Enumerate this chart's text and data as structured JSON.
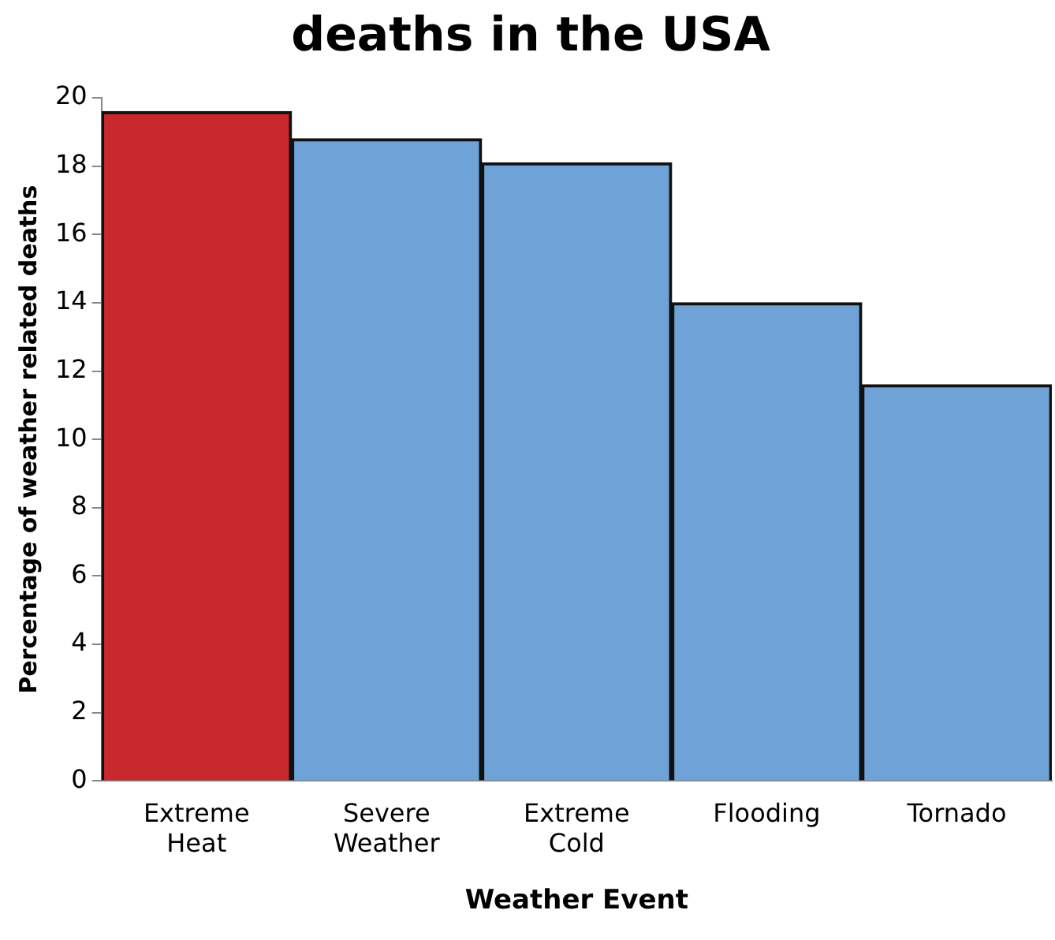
{
  "chart_data": {
    "type": "bar",
    "title": "deaths in the USA",
    "xlabel": "Weather Event",
    "ylabel": "Percentage of weather related deaths",
    "categories": [
      "Extreme Heat",
      "Severe Weather",
      "Extreme Cold",
      "Flooding",
      "Tornado"
    ],
    "values": [
      19.6,
      18.8,
      18.1,
      14.0,
      11.6
    ],
    "colors": [
      "#c8282e",
      "#6fa3d8",
      "#6fa3d8",
      "#6fa3d8",
      "#6fa3d8"
    ],
    "ylim": [
      0,
      20
    ],
    "yticks": [
      0,
      2,
      4,
      6,
      8,
      10,
      12,
      14,
      16,
      18,
      20
    ],
    "grid": false,
    "legend": false
  }
}
